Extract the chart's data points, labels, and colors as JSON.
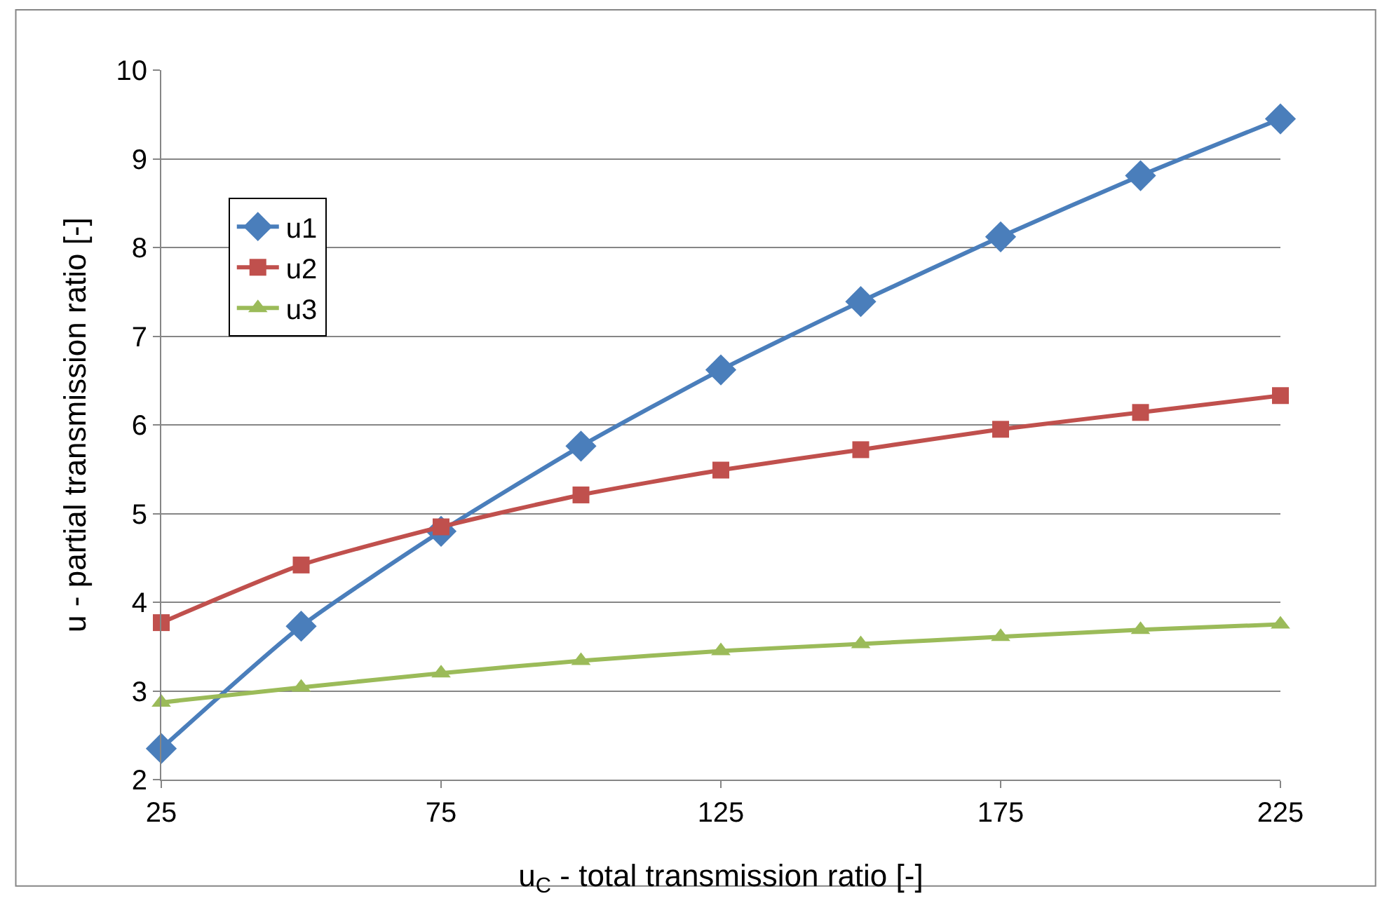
{
  "chart_data": {
    "type": "line",
    "xlabel": "u$_{C}$ - total transmission ratio [-]",
    "ylabel": "u - partial transmission ratio [-]",
    "x": [
      25,
      50,
      75,
      100,
      125,
      150,
      175,
      200,
      225
    ],
    "series": [
      {
        "name": "u1",
        "color": "#4a7ebb",
        "marker": "diamond",
        "values": [
          2.35,
          3.73,
          4.8,
          5.76,
          6.62,
          7.39,
          8.12,
          8.81,
          9.45
        ]
      },
      {
        "name": "u2",
        "color": "#c0504d",
        "marker": "square",
        "values": [
          3.77,
          4.42,
          4.85,
          5.21,
          5.49,
          5.72,
          5.95,
          6.14,
          6.33
        ]
      },
      {
        "name": "u3",
        "color": "#9bbb59",
        "marker": "triangle",
        "values": [
          2.87,
          3.04,
          3.2,
          3.34,
          3.45,
          3.53,
          3.61,
          3.69,
          3.75
        ]
      }
    ],
    "xlim": [
      25,
      225
    ],
    "xticks": [
      25,
      75,
      125,
      175,
      225
    ],
    "ylim": [
      2,
      10
    ],
    "yticks": [
      2,
      3,
      4,
      5,
      6,
      7,
      8,
      9,
      10
    ],
    "grid": "y",
    "legend": "top left",
    "line_style": "solid"
  }
}
